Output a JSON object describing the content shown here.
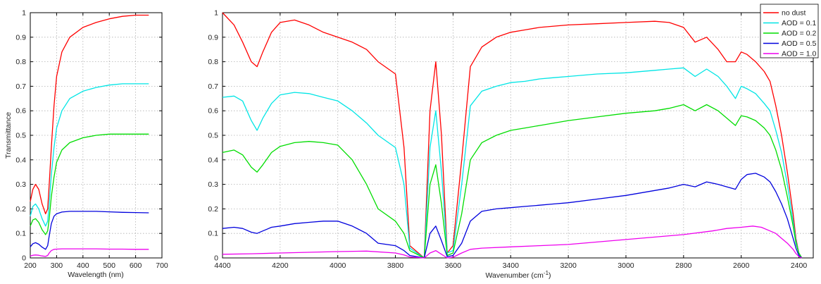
{
  "chart_data": [
    {
      "type": "line",
      "title": "",
      "xlabel": "Wavelength (nm)",
      "ylabel": "Transmittance",
      "xlim": [
        200,
        700
      ],
      "ylim": [
        0,
        1
      ],
      "xticks": [
        "200",
        "300",
        "400",
        "500",
        "600",
        "700"
      ],
      "yticks": [
        "0",
        "0.1",
        "0.2",
        "0.3",
        "0.4",
        "0.5",
        "0.6",
        "0.7",
        "0.8",
        "0.9",
        "1"
      ],
      "grid": true,
      "series": [
        {
          "color": "#ff0000",
          "x": [
            200,
            210,
            220,
            232,
            245,
            258,
            266,
            272,
            280,
            290,
            300,
            320,
            350,
            400,
            450,
            500,
            550,
            600,
            650
          ],
          "y": [
            0.23,
            0.28,
            0.3,
            0.28,
            0.22,
            0.18,
            0.2,
            0.3,
            0.45,
            0.62,
            0.74,
            0.84,
            0.9,
            0.94,
            0.96,
            0.975,
            0.985,
            0.99,
            0.99
          ]
        },
        {
          "color": "#00e5e5",
          "x": [
            200,
            210,
            220,
            232,
            245,
            258,
            266,
            272,
            280,
            290,
            300,
            320,
            350,
            400,
            450,
            500,
            550,
            600,
            650
          ],
          "y": [
            0.17,
            0.21,
            0.22,
            0.2,
            0.16,
            0.13,
            0.15,
            0.22,
            0.34,
            0.45,
            0.53,
            0.6,
            0.65,
            0.68,
            0.695,
            0.705,
            0.71,
            0.71,
            0.71
          ]
        },
        {
          "color": "#00dd00",
          "x": [
            200,
            210,
            220,
            232,
            245,
            258,
            266,
            272,
            280,
            290,
            300,
            320,
            350,
            400,
            450,
            500,
            550,
            600,
            650
          ],
          "y": [
            0.13,
            0.155,
            0.16,
            0.145,
            0.115,
            0.095,
            0.11,
            0.16,
            0.25,
            0.33,
            0.39,
            0.44,
            0.47,
            0.49,
            0.5,
            0.505,
            0.505,
            0.505,
            0.505
          ]
        },
        {
          "color": "#0000dd",
          "x": [
            200,
            210,
            220,
            232,
            245,
            258,
            266,
            272,
            280,
            290,
            300,
            320,
            350,
            400,
            450,
            500,
            550,
            600,
            650
          ],
          "y": [
            0.045,
            0.058,
            0.062,
            0.056,
            0.044,
            0.035,
            0.05,
            0.09,
            0.14,
            0.17,
            0.18,
            0.187,
            0.19,
            0.19,
            0.19,
            0.188,
            0.186,
            0.185,
            0.184
          ]
        },
        {
          "color": "#ee00ee",
          "x": [
            200,
            210,
            220,
            232,
            245,
            258,
            266,
            272,
            280,
            290,
            300,
            320,
            350,
            400,
            450,
            500,
            550,
            600,
            650
          ],
          "y": [
            0.008,
            0.011,
            0.012,
            0.011,
            0.008,
            0.006,
            0.01,
            0.02,
            0.03,
            0.035,
            0.036,
            0.037,
            0.037,
            0.037,
            0.037,
            0.036,
            0.036,
            0.035,
            0.035
          ]
        }
      ]
    },
    {
      "type": "line",
      "title": "",
      "xlabel": "Wavenumber  (cm",
      "xlabel_sup": "-1",
      "xlabel_end": ")",
      "ylabel": "",
      "xlim": [
        4400,
        2350
      ],
      "x_reversed": true,
      "ylim": [
        0,
        1
      ],
      "xticks": [
        "4400",
        "4200",
        "4000",
        "3800",
        "3600",
        "3400",
        "3200",
        "3000",
        "2800",
        "2600",
        "2400"
      ],
      "yticks": [
        "0",
        "0.1",
        "0.2",
        "0.3",
        "0.4",
        "0.5",
        "0.6",
        "0.7",
        "0.8",
        "0.9",
        "1"
      ],
      "grid": true,
      "legend_position": "top-right",
      "series": [
        {
          "name": "no dust",
          "color": "#ff0000",
          "x": [
            4400,
            4360,
            4330,
            4300,
            4280,
            4260,
            4230,
            4200,
            4150,
            4100,
            4050,
            4000,
            3950,
            3900,
            3860,
            3800,
            3770,
            3750,
            3700,
            3680,
            3660,
            3640,
            3620,
            3600,
            3570,
            3540,
            3500,
            3450,
            3400,
            3350,
            3300,
            3250,
            3200,
            3100,
            3000,
            2900,
            2850,
            2800,
            2760,
            2720,
            2680,
            2650,
            2620,
            2600,
            2580,
            2550,
            2520,
            2500,
            2480,
            2460,
            2440,
            2420,
            2410,
            2400,
            2390
          ],
          "y": [
            1.0,
            0.95,
            0.88,
            0.8,
            0.78,
            0.84,
            0.92,
            0.96,
            0.97,
            0.95,
            0.92,
            0.9,
            0.88,
            0.85,
            0.8,
            0.75,
            0.45,
            0.05,
            0.0,
            0.6,
            0.8,
            0.5,
            0.02,
            0.05,
            0.4,
            0.78,
            0.86,
            0.9,
            0.92,
            0.93,
            0.94,
            0.945,
            0.95,
            0.955,
            0.96,
            0.965,
            0.96,
            0.94,
            0.88,
            0.9,
            0.85,
            0.8,
            0.8,
            0.84,
            0.83,
            0.8,
            0.76,
            0.72,
            0.62,
            0.5,
            0.35,
            0.18,
            0.08,
            0.02,
            0.0
          ]
        },
        {
          "name": "AOD = 0.1",
          "color": "#00e5e5",
          "x": [
            4400,
            4360,
            4330,
            4300,
            4280,
            4260,
            4230,
            4200,
            4150,
            4100,
            4050,
            4000,
            3950,
            3900,
            3860,
            3800,
            3770,
            3750,
            3700,
            3680,
            3660,
            3640,
            3620,
            3600,
            3570,
            3540,
            3500,
            3450,
            3400,
            3350,
            3300,
            3250,
            3200,
            3100,
            3000,
            2900,
            2850,
            2800,
            2760,
            2720,
            2680,
            2650,
            2620,
            2600,
            2580,
            2550,
            2520,
            2500,
            2480,
            2460,
            2440,
            2420,
            2410,
            2400,
            2390
          ],
          "y": [
            0.655,
            0.66,
            0.64,
            0.56,
            0.52,
            0.57,
            0.63,
            0.665,
            0.675,
            0.67,
            0.655,
            0.64,
            0.6,
            0.55,
            0.5,
            0.45,
            0.3,
            0.04,
            0.0,
            0.45,
            0.6,
            0.35,
            0.02,
            0.03,
            0.3,
            0.62,
            0.68,
            0.7,
            0.715,
            0.72,
            0.73,
            0.735,
            0.74,
            0.75,
            0.755,
            0.765,
            0.77,
            0.775,
            0.74,
            0.77,
            0.74,
            0.7,
            0.65,
            0.7,
            0.69,
            0.67,
            0.63,
            0.6,
            0.52,
            0.43,
            0.3,
            0.15,
            0.07,
            0.02,
            0.0
          ]
        },
        {
          "name": "AOD = 0.2",
          "color": "#00dd00",
          "x": [
            4400,
            4360,
            4330,
            4300,
            4280,
            4260,
            4230,
            4200,
            4150,
            4100,
            4050,
            4000,
            3950,
            3900,
            3860,
            3800,
            3770,
            3750,
            3700,
            3680,
            3660,
            3640,
            3620,
            3600,
            3570,
            3540,
            3500,
            3450,
            3400,
            3350,
            3300,
            3250,
            3200,
            3100,
            3000,
            2900,
            2850,
            2800,
            2760,
            2720,
            2680,
            2650,
            2620,
            2600,
            2580,
            2550,
            2520,
            2500,
            2480,
            2460,
            2440,
            2420,
            2410,
            2400,
            2390
          ],
          "y": [
            0.43,
            0.44,
            0.42,
            0.37,
            0.35,
            0.38,
            0.43,
            0.455,
            0.47,
            0.475,
            0.47,
            0.46,
            0.4,
            0.3,
            0.2,
            0.15,
            0.1,
            0.03,
            0.0,
            0.3,
            0.38,
            0.22,
            0.01,
            0.02,
            0.18,
            0.4,
            0.47,
            0.5,
            0.52,
            0.53,
            0.54,
            0.55,
            0.56,
            0.575,
            0.59,
            0.6,
            0.61,
            0.625,
            0.6,
            0.625,
            0.6,
            0.57,
            0.54,
            0.58,
            0.575,
            0.56,
            0.53,
            0.5,
            0.44,
            0.36,
            0.25,
            0.13,
            0.06,
            0.02,
            0.0
          ]
        },
        {
          "name": "AOD = 0.5",
          "color": "#0000dd",
          "x": [
            4400,
            4360,
            4330,
            4300,
            4280,
            4260,
            4230,
            4200,
            4150,
            4100,
            4050,
            4000,
            3950,
            3900,
            3860,
            3800,
            3770,
            3750,
            3700,
            3680,
            3660,
            3640,
            3620,
            3600,
            3570,
            3540,
            3500,
            3450,
            3400,
            3350,
            3300,
            3250,
            3200,
            3100,
            3000,
            2900,
            2850,
            2800,
            2760,
            2720,
            2680,
            2650,
            2620,
            2600,
            2580,
            2550,
            2520,
            2500,
            2480,
            2460,
            2440,
            2420,
            2410,
            2400,
            2390
          ],
          "y": [
            0.12,
            0.125,
            0.12,
            0.105,
            0.1,
            0.11,
            0.125,
            0.13,
            0.14,
            0.145,
            0.15,
            0.15,
            0.13,
            0.1,
            0.06,
            0.05,
            0.03,
            0.01,
            0.0,
            0.1,
            0.13,
            0.07,
            0.005,
            0.01,
            0.06,
            0.15,
            0.19,
            0.2,
            0.205,
            0.21,
            0.215,
            0.22,
            0.225,
            0.24,
            0.255,
            0.275,
            0.285,
            0.3,
            0.29,
            0.31,
            0.3,
            0.29,
            0.28,
            0.32,
            0.34,
            0.345,
            0.33,
            0.31,
            0.27,
            0.22,
            0.16,
            0.08,
            0.04,
            0.01,
            0.0
          ]
        },
        {
          "name": "AOD = 1.0",
          "color": "#ee00ee",
          "x": [
            4400,
            4300,
            4200,
            4100,
            4000,
            3900,
            3800,
            3770,
            3750,
            3700,
            3680,
            3660,
            3640,
            3620,
            3600,
            3570,
            3540,
            3500,
            3400,
            3300,
            3200,
            3100,
            3000,
            2900,
            2800,
            2700,
            2650,
            2600,
            2560,
            2530,
            2500,
            2480,
            2460,
            2440,
            2420,
            2410,
            2400,
            2390
          ],
          "y": [
            0.015,
            0.017,
            0.02,
            0.023,
            0.026,
            0.028,
            0.02,
            0.012,
            0.004,
            0.0,
            0.02,
            0.03,
            0.015,
            0.0,
            0.003,
            0.02,
            0.035,
            0.04,
            0.045,
            0.05,
            0.055,
            0.065,
            0.075,
            0.085,
            0.095,
            0.11,
            0.12,
            0.125,
            0.13,
            0.125,
            0.11,
            0.1,
            0.08,
            0.06,
            0.035,
            0.018,
            0.006,
            0.0
          ]
        }
      ]
    }
  ]
}
